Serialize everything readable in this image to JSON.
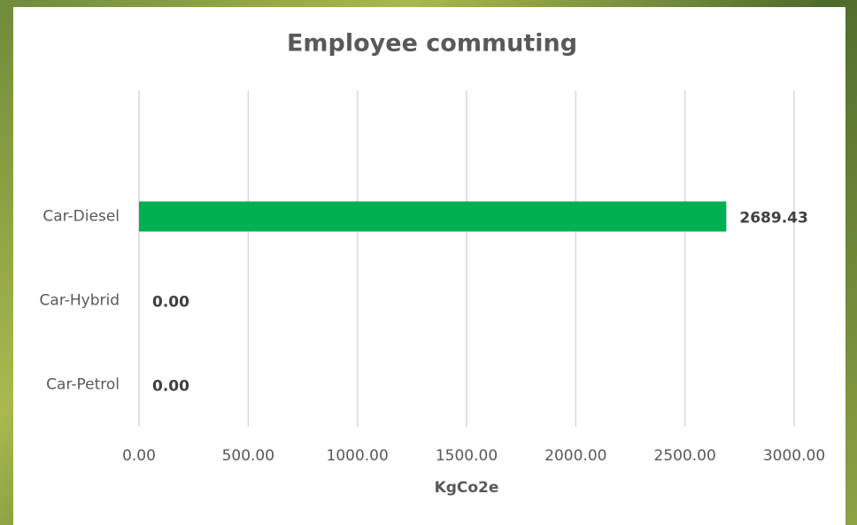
{
  "chart_data": {
    "type": "bar",
    "orientation": "horizontal",
    "title": "Employee commuting",
    "x_label": "KgCo2e",
    "categories": [
      null,
      "Car-Diesel",
      "Car-Hybrid",
      "Car-Petrol"
    ],
    "values": [
      null,
      2689.43,
      0,
      0
    ],
    "value_labels": [
      null,
      "2689.43",
      "0.00",
      "0.00"
    ],
    "color": "#00b050",
    "xlim": [
      0,
      3000
    ],
    "xticks": [
      {
        "value": 0,
        "label": "0.00"
      },
      {
        "value": 500,
        "label": "500.00"
      },
      {
        "value": 1000,
        "label": "1000.00"
      },
      {
        "value": 1500,
        "label": "1500.00"
      },
      {
        "value": 2000,
        "label": "2000.00"
      },
      {
        "value": 2500,
        "label": "2500.00"
      },
      {
        "value": 3000,
        "label": "3000.00"
      }
    ],
    "grid": true
  }
}
